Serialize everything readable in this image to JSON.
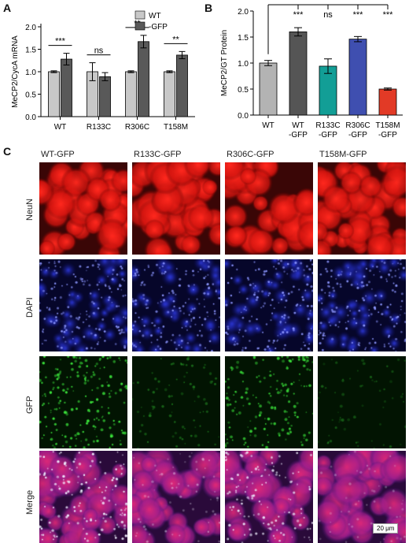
{
  "panels": {
    "a_letter": "A",
    "b_letter": "B",
    "c_letter": "C"
  },
  "chart_data": [
    {
      "type": "bar",
      "panel": "A",
      "ylabel": "MeCP2/CycA mRNA",
      "xlabel": "",
      "categories": [
        "WT",
        "R133C",
        "R306C",
        "T158M"
      ],
      "series": [
        {
          "name": "WT",
          "color": "#c8c8c8",
          "values": [
            1.0,
            1.0,
            1.0,
            1.0
          ],
          "errors": [
            0.02,
            0.2,
            0.02,
            0.02
          ]
        },
        {
          "name": "-GFP",
          "color": "#595959",
          "values": [
            1.28,
            0.89,
            1.67,
            1.37
          ],
          "errors": [
            0.13,
            0.09,
            0.14,
            0.08
          ]
        }
      ],
      "ylim": [
        0.0,
        2.0
      ],
      "yticks": [
        "0.0",
        "0.5",
        "1.0",
        "1.5",
        "2.0"
      ],
      "significance": [
        "***",
        "ns",
        "**",
        "**"
      ],
      "legend_placement": "top-right"
    },
    {
      "type": "bar",
      "panel": "B",
      "ylabel": "MeCP2/GT Protein",
      "xlabel": "",
      "categories": [
        [
          "WT"
        ],
        [
          "WT",
          "-GFP"
        ],
        [
          "R133C",
          "-GFP"
        ],
        [
          "R306C",
          "-GFP"
        ],
        [
          "T158M",
          "-GFP"
        ]
      ],
      "values": [
        1.0,
        1.6,
        0.94,
        1.46,
        0.5
      ],
      "errors": [
        0.05,
        0.08,
        0.14,
        0.05,
        0.02
      ],
      "colors": [
        "#b3b3b3",
        "#555555",
        "#129e96",
        "#3f4fb0",
        "#e23a26"
      ],
      "ylim": [
        0.0,
        2.0
      ],
      "yticks": [
        "0.0",
        "0.5",
        "1.0",
        "1.5",
        "2.0"
      ],
      "significance": [
        "***",
        "ns",
        "***",
        "***"
      ]
    }
  ],
  "micrographs": {
    "columns": [
      "WT-GFP",
      "R133C-GFP",
      "R306C-GFP",
      "T158M-GFP"
    ],
    "rows": [
      "NeuN",
      "DAPI",
      "GFP",
      "Merge"
    ],
    "scale_bar": "20 μm"
  }
}
